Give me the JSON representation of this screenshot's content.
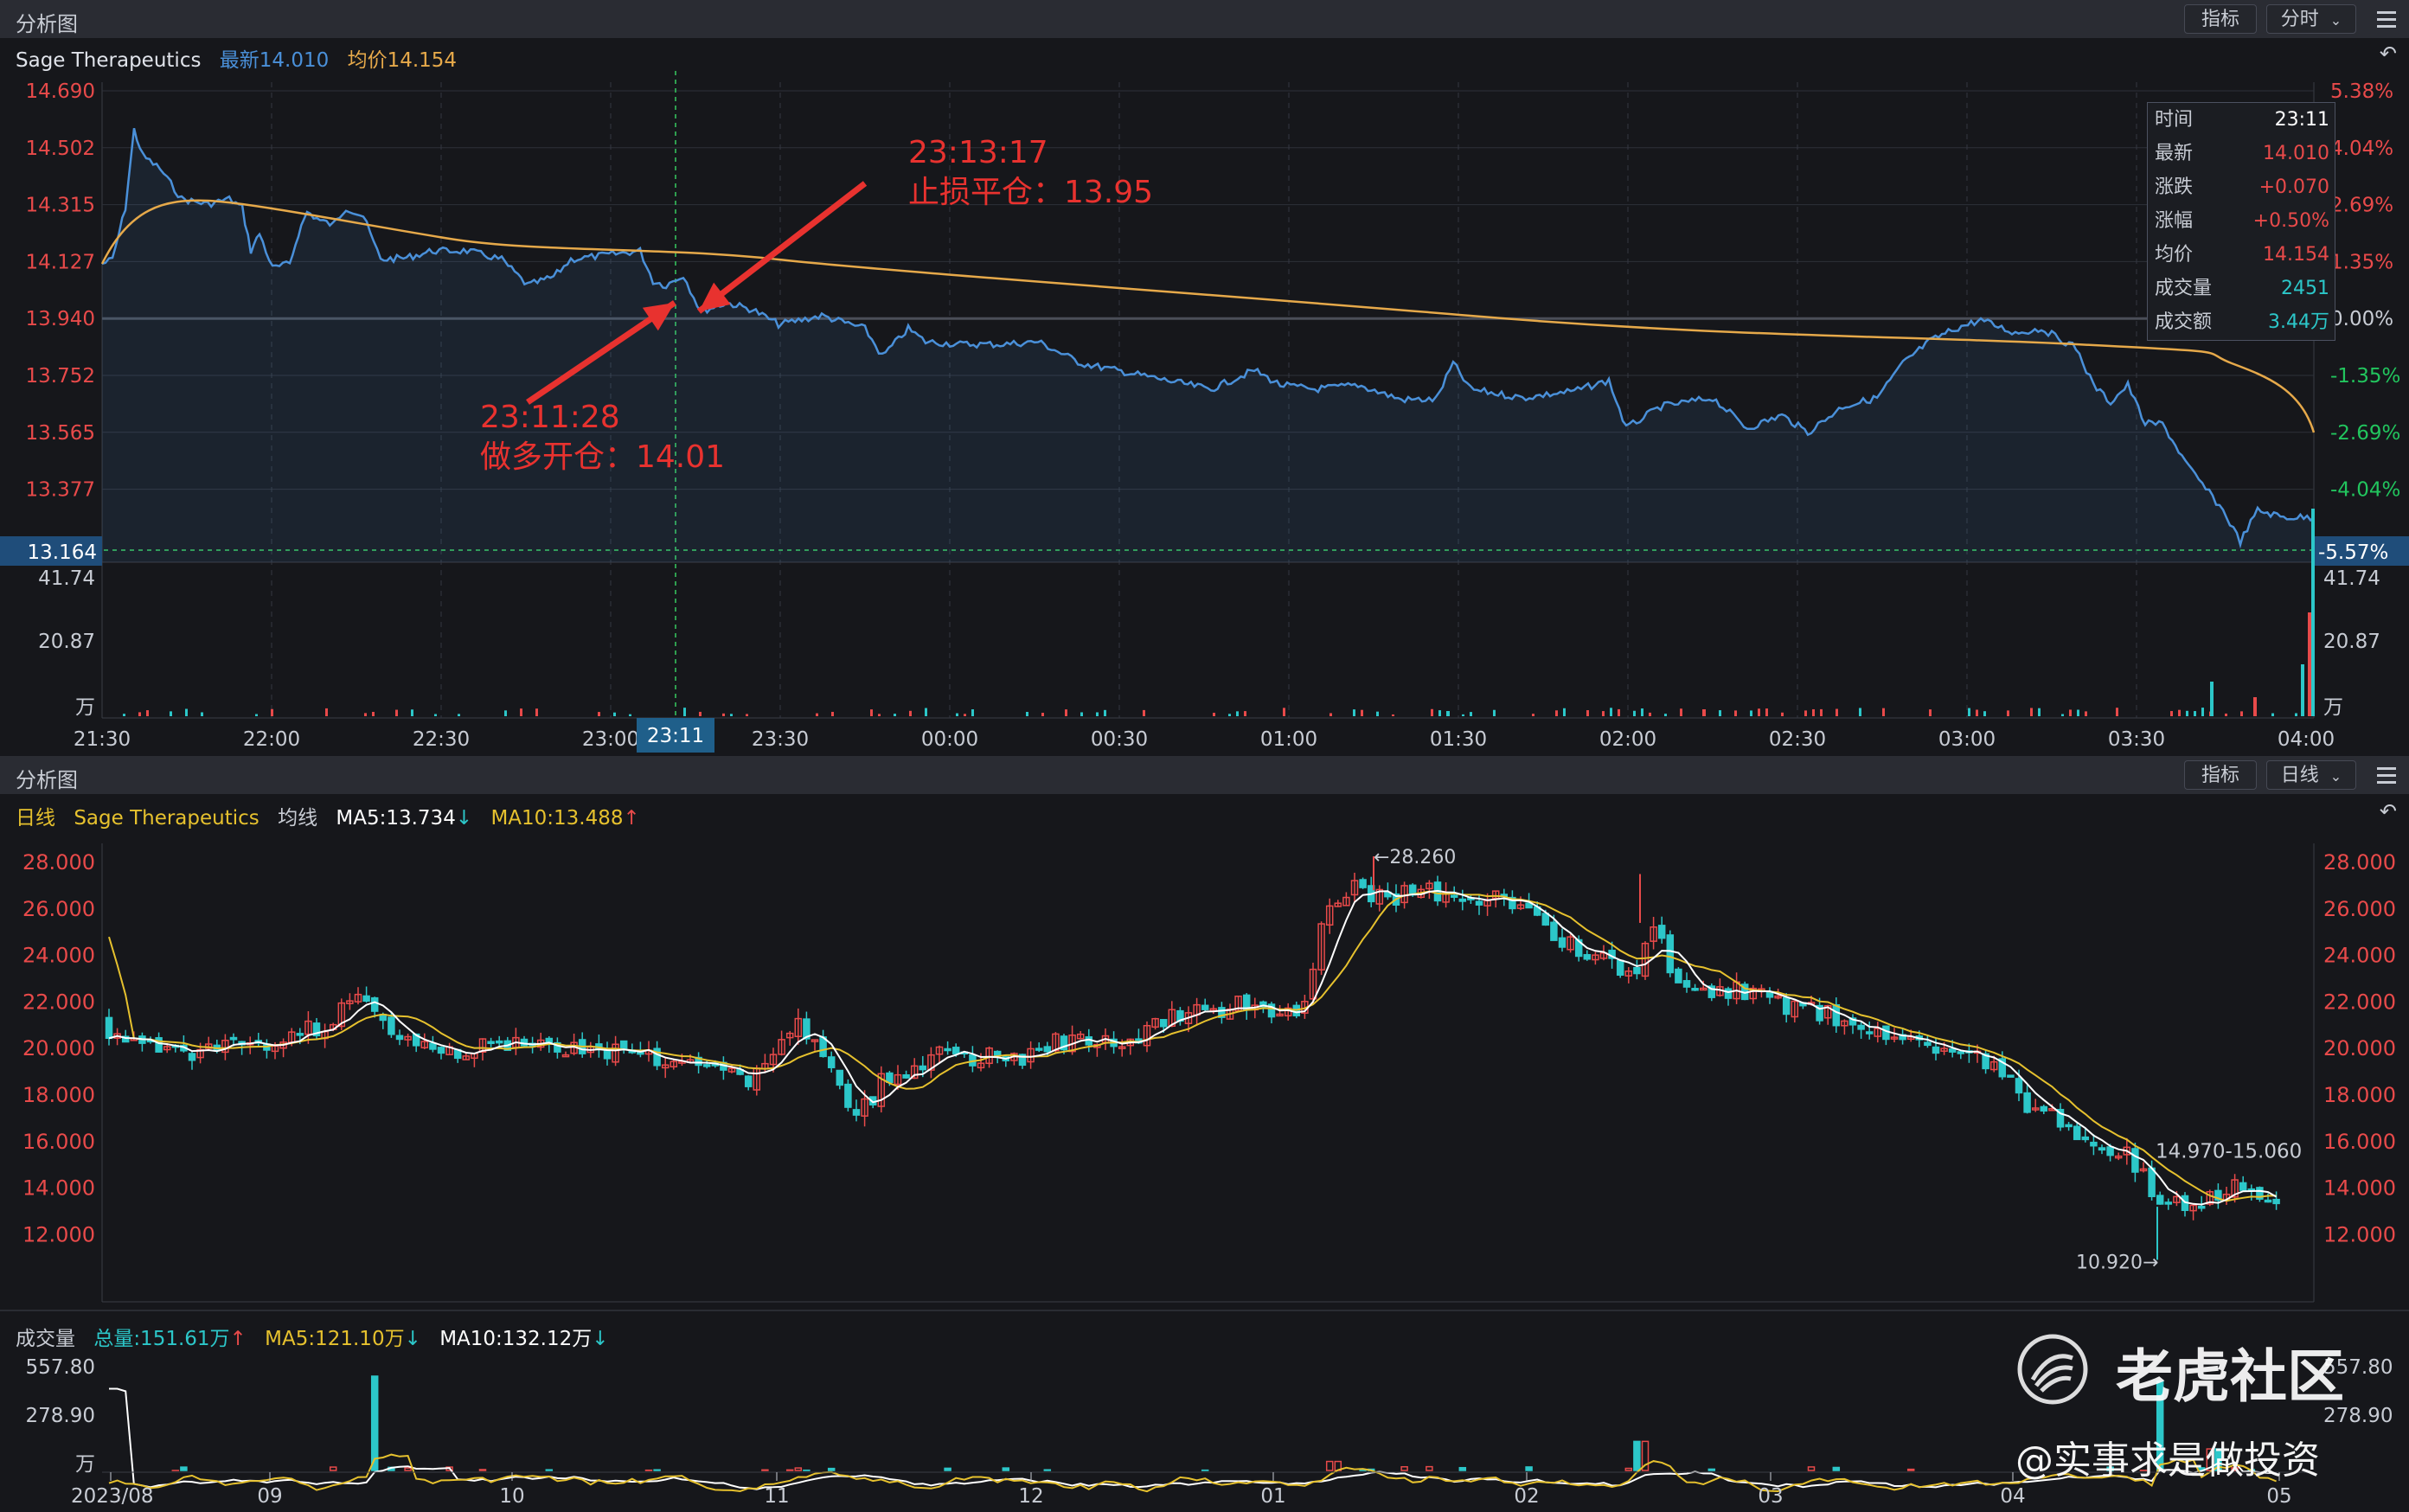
{
  "top_panel": {
    "title": "分析图",
    "indicator_btn": "指标",
    "period_btn": "分时",
    "stock_name": "Sage Therapeutics",
    "latest_label": "最新14.010",
    "avg_label": "均价14.154",
    "price_ticks": [
      "14.690",
      "14.502",
      "14.315",
      "14.127",
      "13.940",
      "13.752",
      "13.565",
      "13.377"
    ],
    "pct_ticks": [
      "5.38%",
      "4.04%",
      "2.69%",
      "1.35%",
      "0.00%",
      "-1.35%",
      "-2.69%",
      "-4.04%"
    ],
    "crosshair_price": "13.164",
    "crosshair_pct": "-5.57%",
    "vol_ticks": [
      "41.74",
      "20.87",
      "万"
    ],
    "vol_ticks_right": [
      "41.74",
      "20.87",
      "万"
    ],
    "time_ticks": [
      "21:30",
      "22:00",
      "22:30",
      "23:00",
      "23:30",
      "00:00",
      "00:30",
      "01:00",
      "01:30",
      "02:00",
      "02:30",
      "03:00",
      "03:30",
      "04:00"
    ],
    "crosshair_time": "23:11",
    "annotation_exit_time": "23:13:17",
    "annotation_exit_text": "止损平仓：13.95",
    "annotation_entry_time": "23:11:28",
    "annotation_entry_text": "做多开仓：14.01",
    "tooltip": [
      {
        "k": "时间",
        "v": "23:11",
        "color": "#ffffff"
      },
      {
        "k": "最新",
        "v": "14.010",
        "color": "#e84a4a"
      },
      {
        "k": "涨跌",
        "v": "+0.070",
        "color": "#e84a4a"
      },
      {
        "k": "涨幅",
        "v": "+0.50%",
        "color": "#e84a4a"
      },
      {
        "k": "均价",
        "v": "14.154",
        "color": "#e84a4a"
      },
      {
        "k": "成交量",
        "v": "2451",
        "color": "#2cc7c9"
      },
      {
        "k": "成交额",
        "v": "3.44万",
        "color": "#2cc7c9"
      }
    ]
  },
  "bottom_panel": {
    "title": "分析图",
    "indicator_btn": "指标",
    "period_btn": "日线",
    "line_label": "日线",
    "stock_name": "Sage Therapeutics",
    "ma_label": "均线",
    "ma5_label": "MA5:13.734",
    "ma10_label": "MA10:13.488",
    "price_ticks": [
      "28.000",
      "26.000",
      "24.000",
      "22.000",
      "20.000",
      "18.000",
      "16.000",
      "14.000",
      "12.000"
    ],
    "high_marker": "←28.260",
    "low_marker": "10.920→",
    "range_label": "14.970-15.060",
    "vol_title": "成交量",
    "vol_total": "总量:151.61万",
    "vol_ma5": "MA5:121.10万",
    "vol_ma10": "MA10:132.12万",
    "vol_ticks": [
      "557.80",
      "278.90",
      "万"
    ],
    "vol_ticks_right": [
      "557.80",
      "278.90"
    ],
    "date_ticks": [
      "2023/08",
      "09",
      "10",
      "11",
      "12",
      "01",
      "02",
      "03",
      "04",
      "05"
    ]
  },
  "watermark": {
    "brand": "老虎社区",
    "handle": "@实事求是做投资"
  },
  "colors": {
    "up": "#e84a4a",
    "down": "#2cc7c9",
    "price_line": "#4a90d9",
    "avg_line": "#e6a94a",
    "ma5": "#ffffff",
    "ma10": "#e6c12e",
    "background": "#16171b"
  }
}
